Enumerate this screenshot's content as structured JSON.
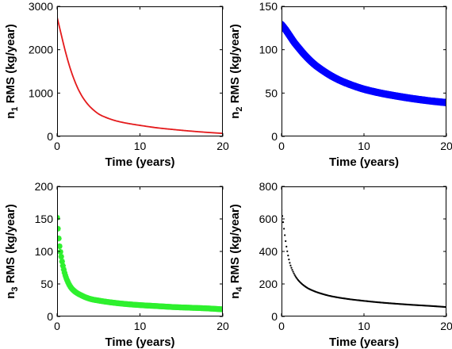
{
  "chart_data": [
    {
      "type": "line",
      "marker": "line",
      "color": "#e41a1c",
      "xlabel": "Time (years)",
      "ylabel_prefix": "n",
      "ylabel_sub": "1",
      "ylabel_suffix": " RMS (kg/year)",
      "xlim": [
        0,
        20
      ],
      "ylim": [
        0,
        3000
      ],
      "xticks": [
        "0",
        "10",
        "20"
      ],
      "yticks": [
        "0",
        "1000",
        "2000",
        "3000"
      ],
      "series": [
        {
          "x": [
            0,
            0.25,
            0.5,
            0.75,
            1,
            1.5,
            2,
            2.5,
            3,
            3.5,
            4,
            5,
            6,
            7,
            8,
            9,
            10,
            12,
            14,
            16,
            18,
            20
          ],
          "y": [
            2750,
            2550,
            2350,
            2150,
            1960,
            1620,
            1340,
            1110,
            930,
            790,
            680,
            520,
            430,
            365,
            320,
            285,
            255,
            200,
            160,
            125,
            95,
            70
          ]
        }
      ]
    },
    {
      "type": "scatter",
      "marker": "filled-circle",
      "color": "#0000ff",
      "xlabel": "Time (years)",
      "ylabel_prefix": "n",
      "ylabel_sub": "2",
      "ylabel_suffix": " RMS (kg/year)",
      "xlim": [
        0,
        20
      ],
      "ylim": [
        0,
        150
      ],
      "xticks": [
        "0",
        "10",
        "20"
      ],
      "yticks": [
        "0",
        "50",
        "100",
        "150"
      ],
      "series": [
        {
          "x": [
            0,
            0.5,
            1,
            1.5,
            2,
            3,
            4,
            5,
            6,
            7,
            8,
            9,
            10,
            12,
            14,
            16,
            18,
            20
          ],
          "y": [
            129,
            123,
            116,
            109,
            103,
            92,
            83,
            76,
            70,
            65,
            61,
            57.5,
            54.5,
            50,
            46.5,
            43.5,
            41,
            39
          ]
        }
      ]
    },
    {
      "type": "scatter",
      "marker": "star",
      "color": "#2ef02e",
      "xlabel": "Time (years)",
      "ylabel_prefix": "n",
      "ylabel_sub": "3",
      "ylabel_suffix": " RMS (kg/year)",
      "xlim": [
        0,
        20
      ],
      "ylim": [
        0,
        200
      ],
      "xticks": [
        "0",
        "10",
        "20"
      ],
      "yticks": [
        "0",
        "50",
        "100",
        "150",
        "200"
      ],
      "series": [
        {
          "x": [
            0,
            0.1,
            0.2,
            0.3,
            0.5,
            0.7,
            1,
            1.5,
            2,
            3,
            4,
            5,
            6,
            8,
            10,
            12,
            14,
            16,
            18,
            20
          ],
          "y": [
            152,
            135,
            120,
            108,
            92,
            78,
            63,
            48,
            40,
            32,
            27,
            24.5,
            22.5,
            19.5,
            17.5,
            16,
            14.5,
            13.5,
            12.5,
            11
          ]
        }
      ]
    },
    {
      "type": "scatter",
      "marker": "dot",
      "color": "#000000",
      "xlabel": "Time (years)",
      "ylabel_prefix": "n",
      "ylabel_sub": "4",
      "ylabel_suffix": " RMS (kg/year)",
      "xlim": [
        0,
        20
      ],
      "ylim": [
        0,
        800
      ],
      "xticks": [
        "0",
        "10",
        "20"
      ],
      "yticks": [
        "0",
        "200",
        "400",
        "600",
        "800"
      ],
      "series": [
        {
          "x": [
            0,
            0.2,
            0.4,
            0.6,
            0.8,
            1,
            1.5,
            2,
            3,
            4,
            5,
            6,
            8,
            10,
            12,
            14,
            16,
            18,
            20
          ],
          "y": [
            655,
            580,
            500,
            430,
            375,
            330,
            265,
            225,
            180,
            155,
            138,
            125,
            108,
            96,
            86,
            78,
            71,
            65,
            58
          ]
        }
      ]
    }
  ]
}
